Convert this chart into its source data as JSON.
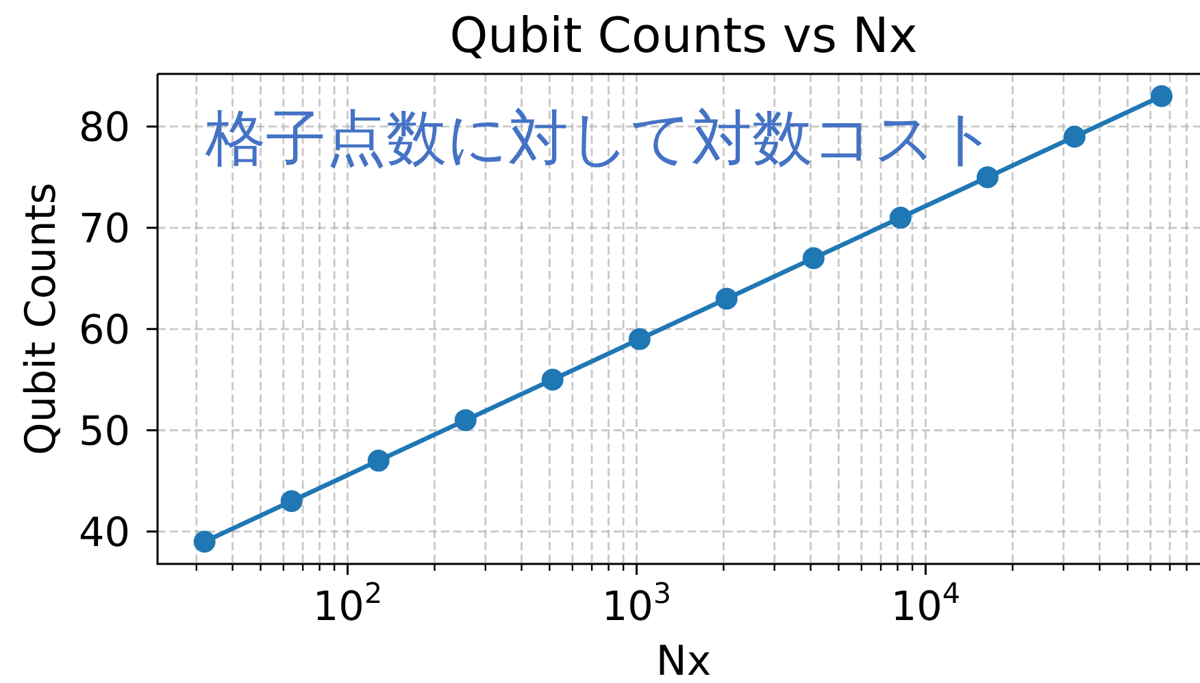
{
  "chart_data": {
    "type": "line",
    "title": "Qubit Counts vs Nx",
    "xlabel": "Nx",
    "ylabel": "Qubit Counts",
    "annotations": [
      "格子点数に対して対数コスト"
    ],
    "x": [
      32,
      64,
      128,
      256,
      512,
      1024,
      2048,
      4096,
      8192,
      16384,
      32768,
      65536
    ],
    "series": [
      {
        "color": "#1f77b4",
        "values": [
          39,
          43,
          47,
          51,
          55,
          59,
          63,
          67,
          71,
          75,
          79,
          83
        ]
      }
    ],
    "log": "x",
    "xlim": [
      22,
      89000
    ],
    "ylim": [
      36.8,
      85.2
    ],
    "xticks": [
      {
        "value": 30,
        "label": null
      },
      {
        "value": 40,
        "label": null
      },
      {
        "value": 50,
        "label": null
      },
      {
        "value": 60,
        "label": null
      },
      {
        "value": 70,
        "label": null
      },
      {
        "value": 80,
        "label": null
      },
      {
        "value": 90,
        "label": null
      },
      {
        "value": 100,
        "label": "10$^{2}$"
      },
      {
        "value": 200,
        "label": null
      },
      {
        "value": 300,
        "label": null
      },
      {
        "value": 400,
        "label": null
      },
      {
        "value": 500,
        "label": null
      },
      {
        "value": 600,
        "label": null
      },
      {
        "value": 700,
        "label": null
      },
      {
        "value": 800,
        "label": null
      },
      {
        "value": 900,
        "label": null
      },
      {
        "value": 1000,
        "label": "10$^{3}$"
      },
      {
        "value": 2000,
        "label": null
      },
      {
        "value": 3000,
        "label": null
      },
      {
        "value": 4000,
        "label": null
      },
      {
        "value": 5000,
        "label": null
      },
      {
        "value": 6000,
        "label": null
      },
      {
        "value": 7000,
        "label": null
      },
      {
        "value": 8000,
        "label": null
      },
      {
        "value": 9000,
        "label": null
      },
      {
        "value": 10000,
        "label": "10$^{4}$"
      },
      {
        "value": 20000,
        "label": null
      },
      {
        "value": 30000,
        "label": null
      },
      {
        "value": 40000,
        "label": null
      },
      {
        "value": 50000,
        "label": null
      },
      {
        "value": 60000,
        "label": null
      },
      {
        "value": 70000,
        "label": null
      },
      {
        "value": 80000,
        "label": null
      }
    ],
    "yticks": [
      40,
      50,
      60,
      70,
      80
    ],
    "grid": true,
    "marker": "circle"
  }
}
